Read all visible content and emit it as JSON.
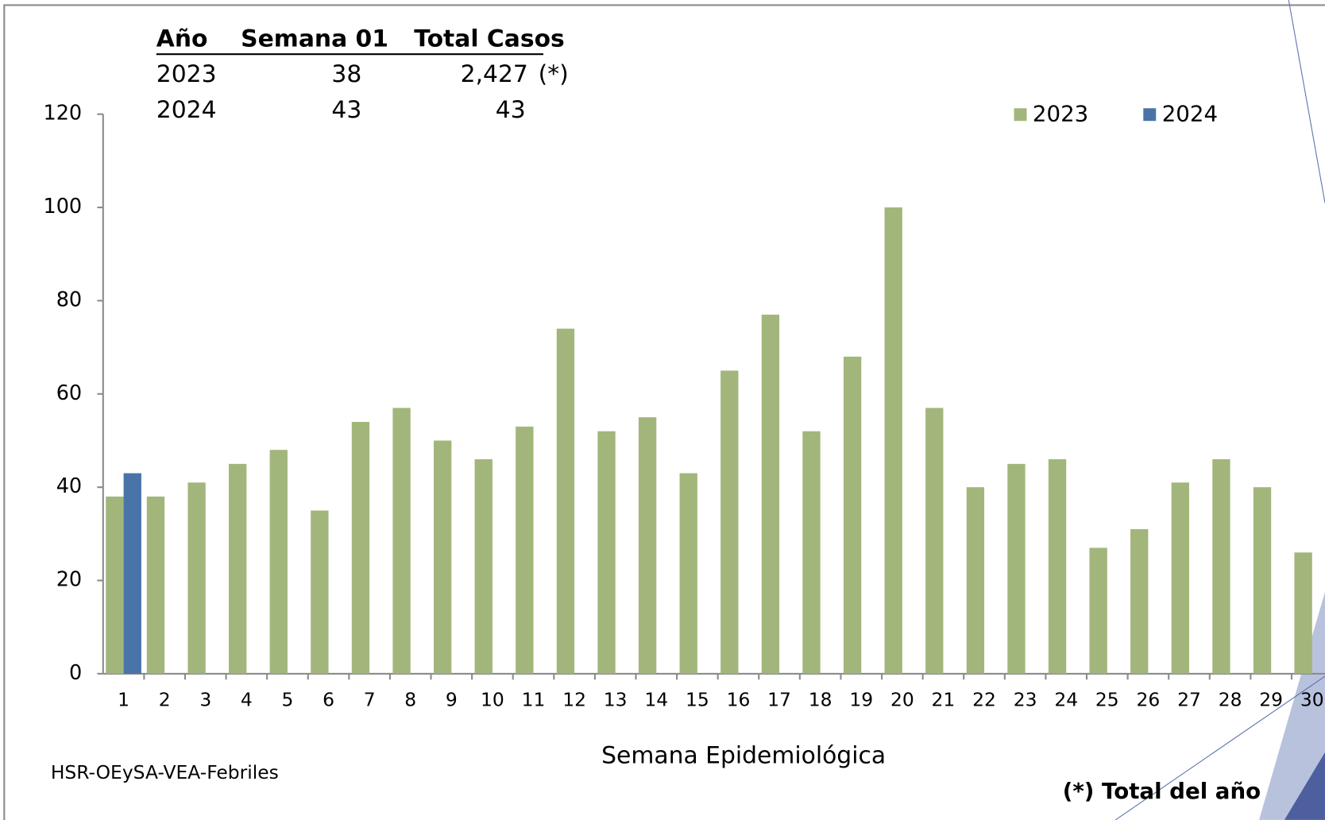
{
  "chart_data": {
    "type": "bar",
    "xlabel": "Semana Epidemiológica",
    "source": "HSR-OEySA-VEA-Febriles",
    "footnote": "(*) Total del año",
    "table": {
      "header": [
        "Año",
        "Semana 01",
        "Total Casos"
      ],
      "rows": [
        [
          "2023",
          "38",
          "2,427",
          "(*)"
        ],
        [
          "2024",
          "43",
          "43"
        ]
      ]
    },
    "categories": [
      "1",
      "2",
      "3",
      "4",
      "5",
      "6",
      "7",
      "8",
      "9",
      "10",
      "11",
      "12",
      "13",
      "14",
      "15",
      "16",
      "17",
      "18",
      "19",
      "20",
      "21",
      "22",
      "23",
      "24",
      "25",
      "26",
      "27",
      "28",
      "29",
      "30"
    ],
    "series": [
      {
        "name": "2023",
        "color": "#a2b67b",
        "values": [
          38,
          38,
          41,
          45,
          48,
          35,
          54,
          57,
          50,
          46,
          53,
          74,
          52,
          55,
          43,
          65,
          77,
          52,
          68,
          100,
          57,
          40,
          45,
          46,
          27,
          31,
          41,
          46,
          40,
          26
        ]
      },
      {
        "name": "2024",
        "color": "#4a74a8",
        "values": [
          43,
          null,
          null,
          null,
          null,
          null,
          null,
          null,
          null,
          null,
          null,
          null,
          null,
          null,
          null,
          null,
          null,
          null,
          null,
          null,
          null,
          null,
          null,
          null,
          null,
          null,
          null,
          null,
          null,
          null
        ]
      }
    ],
    "ylim": [
      0,
      120
    ],
    "yticks": [
      0,
      20,
      40,
      60,
      80,
      100,
      120
    ],
    "legend": "top-right"
  }
}
